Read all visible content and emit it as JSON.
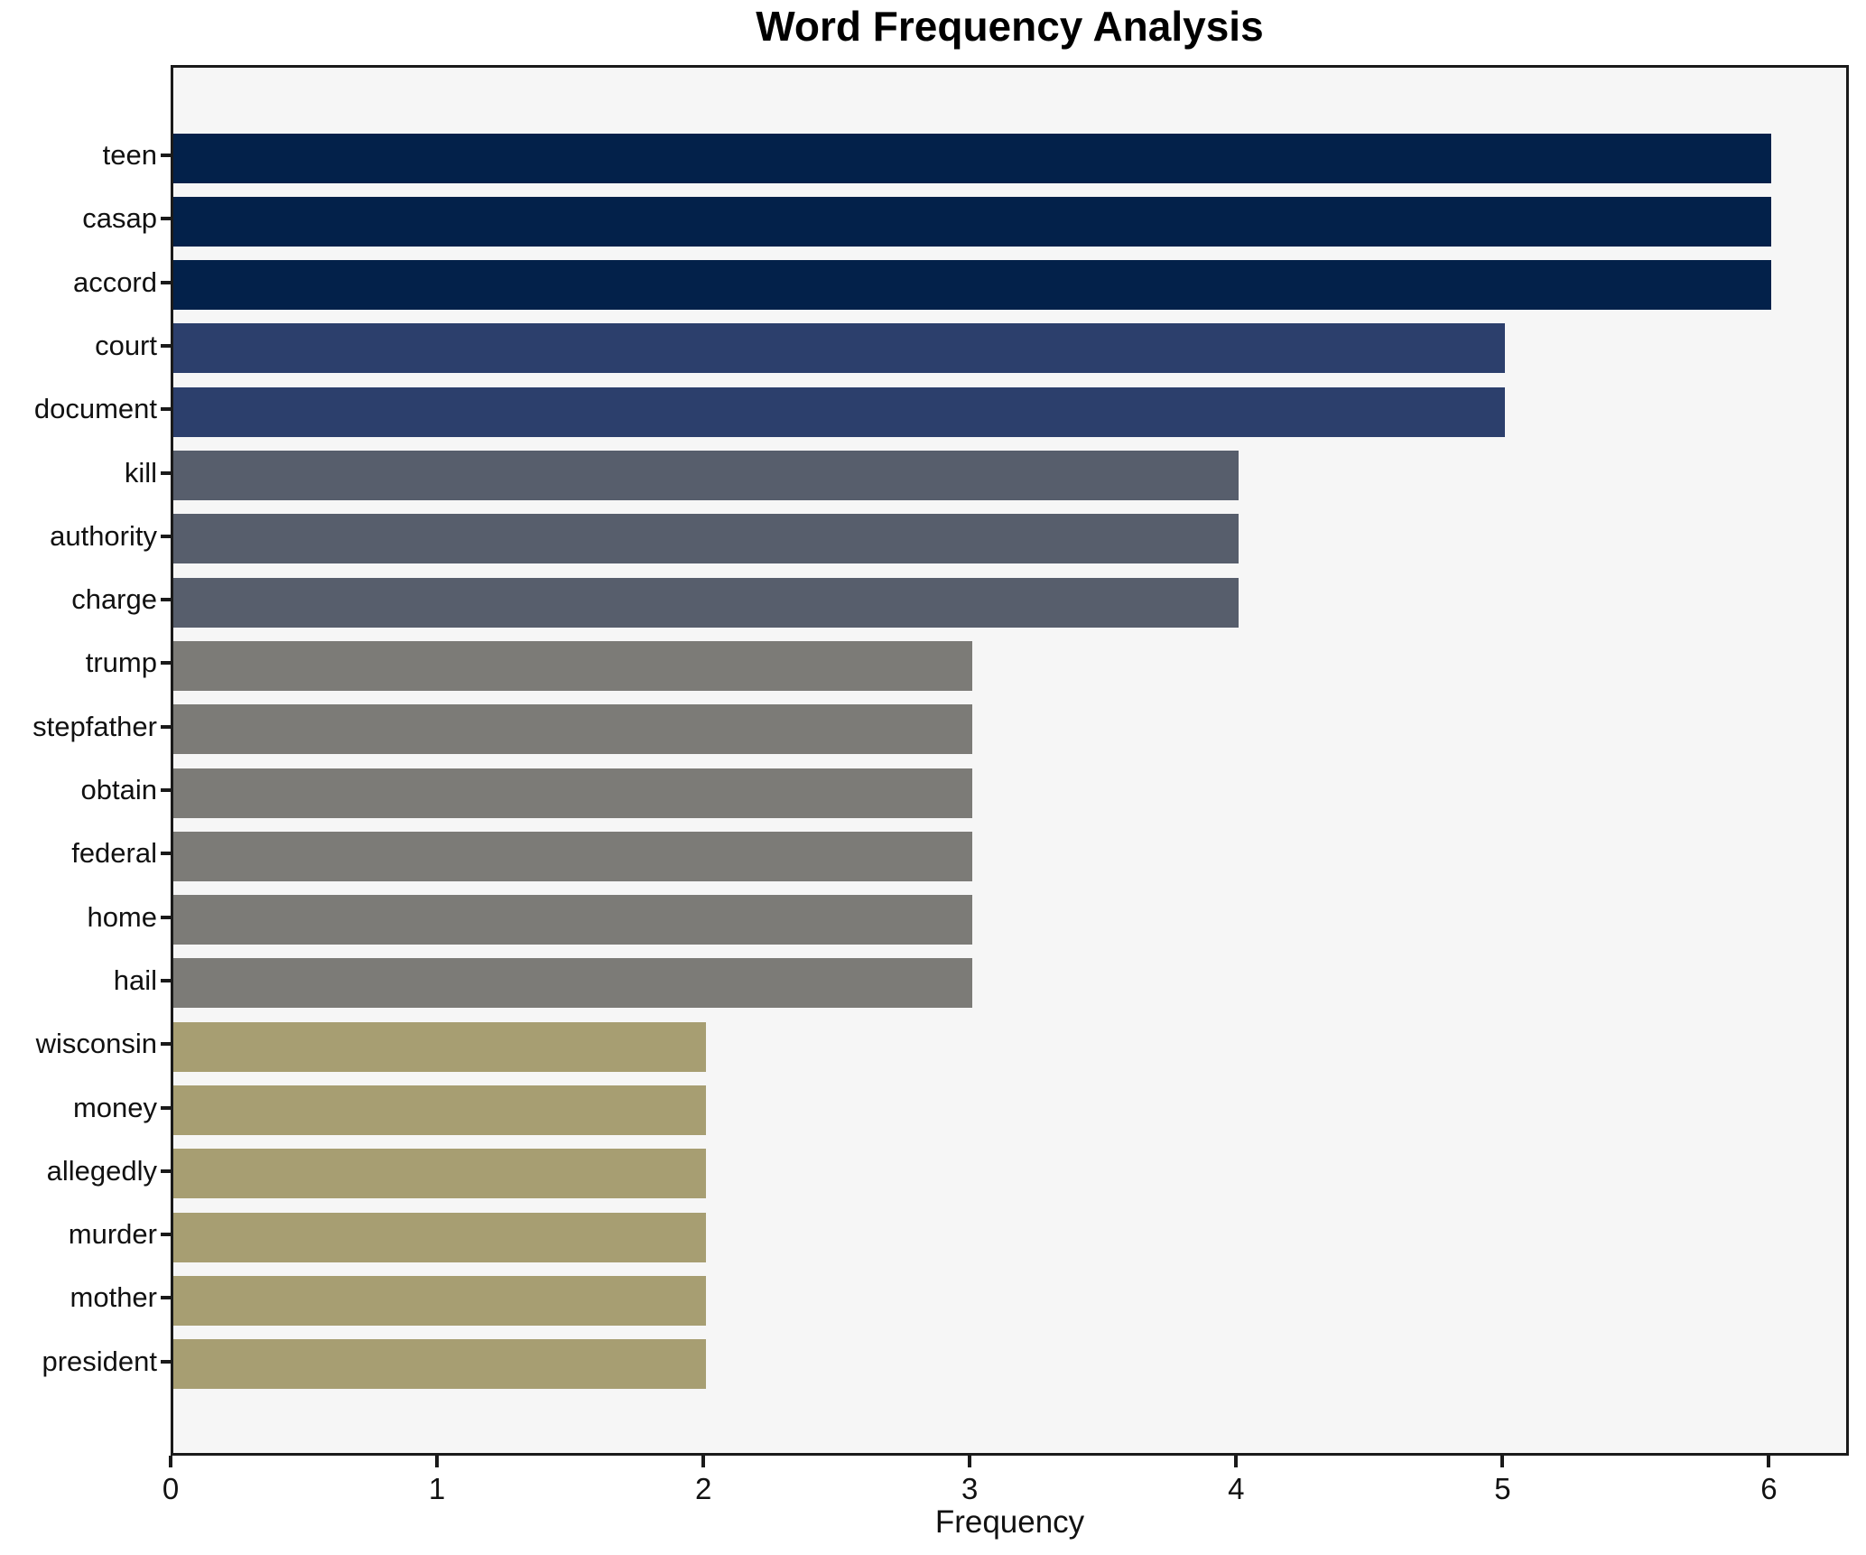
{
  "chart_data": {
    "type": "bar",
    "orientation": "horizontal",
    "title": "Word Frequency Analysis",
    "xlabel": "Frequency",
    "ylabel": "",
    "categories": [
      "teen",
      "casap",
      "accord",
      "court",
      "document",
      "kill",
      "authority",
      "charge",
      "trump",
      "stepfather",
      "obtain",
      "federal",
      "home",
      "hail",
      "wisconsin",
      "money",
      "allegedly",
      "murder",
      "mother",
      "president"
    ],
    "values": [
      6,
      6,
      6,
      5,
      5,
      4,
      4,
      4,
      3,
      3,
      3,
      3,
      3,
      3,
      2,
      2,
      2,
      2,
      2,
      2
    ],
    "xticks": [
      0,
      1,
      2,
      3,
      4,
      5,
      6
    ],
    "xlim": [
      0,
      6.3
    ],
    "grid": false,
    "legend": null,
    "colors": {
      "value_6": "#03214a",
      "value_5": "#2c3f6c",
      "value_4": "#575e6c",
      "value_3": "#7c7b77",
      "value_2": "#a79e72",
      "plot_background": "#f6f6f6",
      "figure_background": "#ffffff",
      "axis": "#1a1a1a",
      "text": "#111111"
    }
  }
}
